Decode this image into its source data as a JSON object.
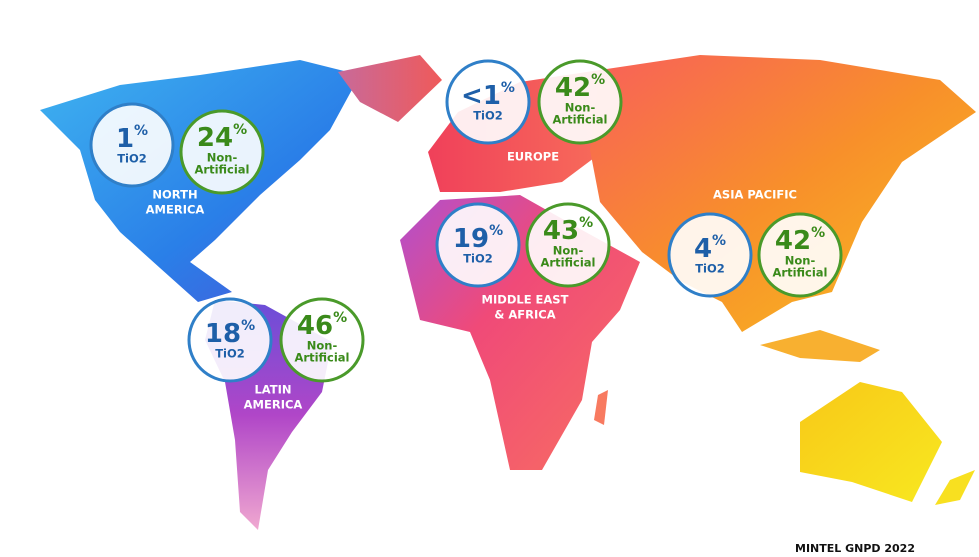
{
  "regions": [
    {
      "name": [
        "NORTH",
        "AMERICA"
      ],
      "tio2": {
        "value": 1,
        "unit": "%",
        "label": [
          "TiO2"
        ]
      },
      "non_artificial": {
        "value": 24,
        "unit": "%",
        "label": [
          "Non-",
          "Artificial"
        ]
      }
    },
    {
      "name": [
        "EUROPE"
      ],
      "tio2": {
        "value": "<1",
        "unit": "%",
        "label": [
          "TiO2"
        ]
      },
      "non_artificial": {
        "value": 42,
        "unit": "%",
        "label": [
          "Non-",
          "Artificial"
        ]
      }
    },
    {
      "name": [
        "MIDDLE EAST",
        "& AFRICA"
      ],
      "tio2": {
        "value": 19,
        "unit": "%",
        "label": [
          "TiO2"
        ]
      },
      "non_artificial": {
        "value": 43,
        "unit": "%",
        "label": [
          "Non-",
          "Artificial"
        ]
      }
    },
    {
      "name": [
        "ASIA PACIFIC"
      ],
      "tio2": {
        "value": 4,
        "unit": "%",
        "label": [
          "TiO2"
        ]
      },
      "non_artificial": {
        "value": 42,
        "unit": "%",
        "label": [
          "Non-",
          "Artificial"
        ]
      }
    },
    {
      "name": [
        "LATIN",
        "AMERICA"
      ],
      "tio2": {
        "value": 18,
        "unit": "%",
        "label": [
          "TiO2"
        ]
      },
      "non_artificial": {
        "value": 46,
        "unit": "%",
        "label": [
          "Non-",
          "Artificial"
        ]
      }
    }
  ],
  "source": "MINTEL GNPD 2022"
}
